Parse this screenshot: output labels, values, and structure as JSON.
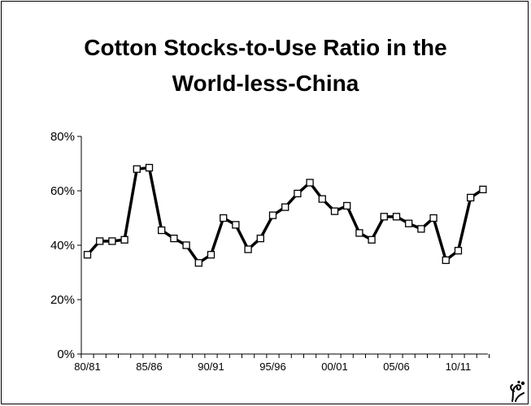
{
  "chart_data": {
    "type": "line",
    "title_line1": "Cotton Stocks-to-Use Ratio in the",
    "title_line2": "World-less-China",
    "xlabel": "",
    "ylabel": "",
    "ylim": [
      0,
      80
    ],
    "y_ticks": [
      "0%",
      "20%",
      "40%",
      "60%",
      "80%"
    ],
    "x_tick_labels": [
      "80/81",
      "85/86",
      "90/91",
      "95/96",
      "00/01",
      "05/06",
      "10/11"
    ],
    "x": [
      "80/81",
      "81/82",
      "82/83",
      "83/84",
      "84/85",
      "85/86",
      "86/87",
      "87/88",
      "88/89",
      "89/90",
      "90/91",
      "91/92",
      "92/93",
      "93/94",
      "94/95",
      "95/96",
      "96/97",
      "97/98",
      "98/99",
      "99/00",
      "00/01",
      "01/02",
      "02/03",
      "03/04",
      "04/05",
      "05/06",
      "06/07",
      "07/08",
      "08/09",
      "09/10",
      "10/11",
      "11/12",
      "12/13"
    ],
    "series": [
      {
        "values": [
          36.5,
          41.5,
          41.5,
          42,
          68,
          68.5,
          45.5,
          42.5,
          40,
          33.5,
          36.5,
          50,
          47.5,
          38.5,
          42.5,
          51,
          54,
          59,
          63,
          57,
          52.5,
          54.5,
          44.5,
          42,
          50.5,
          50.5,
          48,
          46,
          50,
          34.5,
          38,
          57.5,
          60.5
        ]
      }
    ],
    "grid": false,
    "line_color": "#000000",
    "marker": "square-hollow"
  }
}
